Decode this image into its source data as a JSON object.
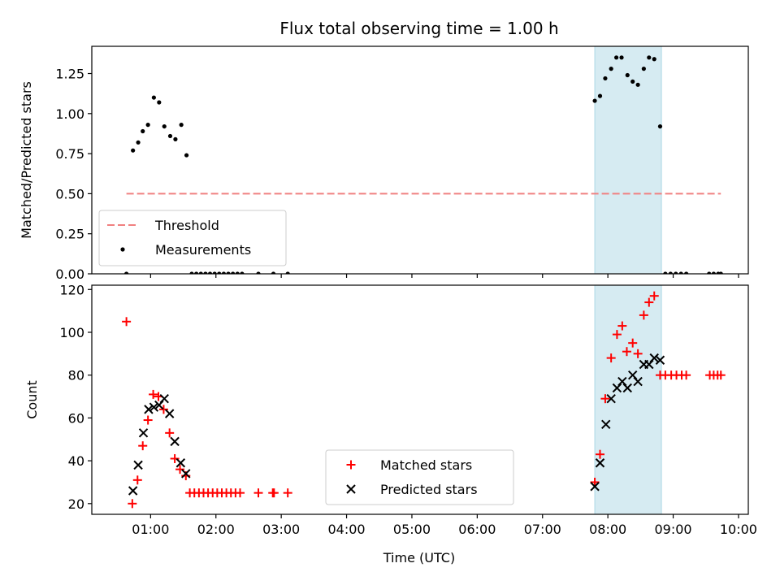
{
  "figure": {
    "title": "Flux total observing time = 1.00 h",
    "xlabel": "Time (UTC)",
    "x_tick_labels": [
      "01:00",
      "02:00",
      "03:00",
      "04:00",
      "05:00",
      "06:00",
      "07:00",
      "08:00",
      "09:00",
      "10:00"
    ]
  },
  "colors": {
    "threshold": "#f08080",
    "measurement": "#000000",
    "matched": "#ff0000",
    "predicted": "#000000",
    "highlight_fill": "#add8e6"
  },
  "chart_data": [
    {
      "type": "scatter",
      "ylabel": "Matched/Predicted stars",
      "xlim": [
        0.1,
        10.15
      ],
      "ylim": [
        0,
        1.42
      ],
      "y_ticks": [
        0.0,
        0.25,
        0.5,
        0.75,
        1.0,
        1.25
      ],
      "y_tick_labels": [
        "0.00",
        "0.25",
        "0.50",
        "0.75",
        "1.00",
        "1.25"
      ],
      "highlight_span": [
        7.8,
        8.82
      ],
      "legend": {
        "position": "lower left",
        "entries": [
          "Threshold",
          "Measurements"
        ]
      },
      "threshold": {
        "name": "Threshold",
        "y": 0.5,
        "x_range": [
          0.63,
          9.73
        ]
      },
      "series": [
        {
          "name": "Measurements",
          "points": [
            [
              0.63,
              0
            ],
            [
              0.73,
              0.77
            ],
            [
              0.81,
              0.82
            ],
            [
              0.88,
              0.89
            ],
            [
              0.96,
              0.93
            ],
            [
              1.05,
              1.1
            ],
            [
              1.13,
              1.07
            ],
            [
              1.21,
              0.92
            ],
            [
              1.3,
              0.86
            ],
            [
              1.38,
              0.84
            ],
            [
              1.47,
              0.93
            ],
            [
              1.55,
              0.74
            ],
            [
              1.63,
              0
            ],
            [
              1.7,
              0
            ],
            [
              1.77,
              0
            ],
            [
              1.84,
              0
            ],
            [
              1.91,
              0
            ],
            [
              1.98,
              0
            ],
            [
              2.05,
              0
            ],
            [
              2.12,
              0
            ],
            [
              2.19,
              0
            ],
            [
              2.26,
              0
            ],
            [
              2.33,
              0
            ],
            [
              2.4,
              0
            ],
            [
              2.65,
              0
            ],
            [
              2.88,
              0
            ],
            [
              3.1,
              0
            ],
            [
              7.8,
              1.08
            ],
            [
              7.88,
              1.11
            ],
            [
              7.96,
              1.22
            ],
            [
              8.05,
              1.28
            ],
            [
              8.13,
              1.35
            ],
            [
              8.21,
              1.35
            ],
            [
              8.3,
              1.24
            ],
            [
              8.38,
              1.2
            ],
            [
              8.46,
              1.18
            ],
            [
              8.55,
              1.28
            ],
            [
              8.63,
              1.35
            ],
            [
              8.71,
              1.34
            ],
            [
              8.8,
              0.92
            ],
            [
              8.88,
              0
            ],
            [
              8.96,
              0
            ],
            [
              9.04,
              0
            ],
            [
              9.12,
              0
            ],
            [
              9.2,
              0
            ],
            [
              9.55,
              0
            ],
            [
              9.62,
              0
            ],
            [
              9.69,
              0
            ],
            [
              9.73,
              0
            ]
          ]
        }
      ]
    },
    {
      "type": "scatter",
      "ylabel": "Count",
      "xlim": [
        0.1,
        10.15
      ],
      "ylim": [
        15,
        122
      ],
      "y_ticks": [
        20,
        40,
        60,
        80,
        100,
        120
      ],
      "y_tick_labels": [
        "20",
        "40",
        "60",
        "80",
        "100",
        "120"
      ],
      "highlight_span": [
        7.8,
        8.82
      ],
      "legend": {
        "position": "lower center",
        "entries": [
          "Matched stars",
          "Predicted stars"
        ]
      },
      "series": [
        {
          "name": "Matched stars",
          "marker": "+",
          "points": [
            [
              0.63,
              105
            ],
            [
              0.72,
              20
            ],
            [
              0.8,
              31
            ],
            [
              0.88,
              47
            ],
            [
              0.96,
              59
            ],
            [
              1.04,
              71
            ],
            [
              1.12,
              70
            ],
            [
              1.2,
              64
            ],
            [
              1.29,
              53
            ],
            [
              1.37,
              41
            ],
            [
              1.45,
              36
            ],
            [
              1.54,
              33
            ],
            [
              1.6,
              25
            ],
            [
              1.67,
              25
            ],
            [
              1.74,
              25
            ],
            [
              1.81,
              25
            ],
            [
              1.88,
              25
            ],
            [
              1.95,
              25
            ],
            [
              2.02,
              25
            ],
            [
              2.09,
              25
            ],
            [
              2.16,
              25
            ],
            [
              2.23,
              25
            ],
            [
              2.3,
              25
            ],
            [
              2.37,
              25
            ],
            [
              2.65,
              25
            ],
            [
              2.87,
              25
            ],
            [
              2.89,
              25
            ],
            [
              3.1,
              25
            ],
            [
              7.8,
              30
            ],
            [
              7.88,
              43
            ],
            [
              7.96,
              69
            ],
            [
              8.05,
              88
            ],
            [
              8.14,
              99
            ],
            [
              8.22,
              103
            ],
            [
              8.29,
              91
            ],
            [
              8.38,
              95
            ],
            [
              8.46,
              90
            ],
            [
              8.55,
              108
            ],
            [
              8.63,
              114
            ],
            [
              8.71,
              117
            ],
            [
              8.8,
              80
            ],
            [
              8.88,
              80
            ],
            [
              8.97,
              80
            ],
            [
              9.05,
              80
            ],
            [
              9.13,
              80
            ],
            [
              9.2,
              80
            ],
            [
              9.56,
              80
            ],
            [
              9.62,
              80
            ],
            [
              9.68,
              80
            ],
            [
              9.73,
              80
            ]
          ]
        },
        {
          "name": "Predicted stars",
          "marker": "x",
          "points": [
            [
              0.73,
              26
            ],
            [
              0.81,
              38
            ],
            [
              0.89,
              53
            ],
            [
              0.97,
              64
            ],
            [
              1.05,
              65
            ],
            [
              1.13,
              66
            ],
            [
              1.21,
              69
            ],
            [
              1.29,
              62
            ],
            [
              1.37,
              49
            ],
            [
              1.46,
              39
            ],
            [
              1.54,
              34
            ],
            [
              7.8,
              28
            ],
            [
              7.88,
              39
            ],
            [
              7.97,
              57
            ],
            [
              8.05,
              69
            ],
            [
              8.14,
              74
            ],
            [
              8.22,
              77
            ],
            [
              8.3,
              74
            ],
            [
              8.38,
              80
            ],
            [
              8.46,
              77
            ],
            [
              8.55,
              85
            ],
            [
              8.63,
              85
            ],
            [
              8.71,
              88
            ],
            [
              8.8,
              87
            ]
          ]
        }
      ]
    }
  ]
}
